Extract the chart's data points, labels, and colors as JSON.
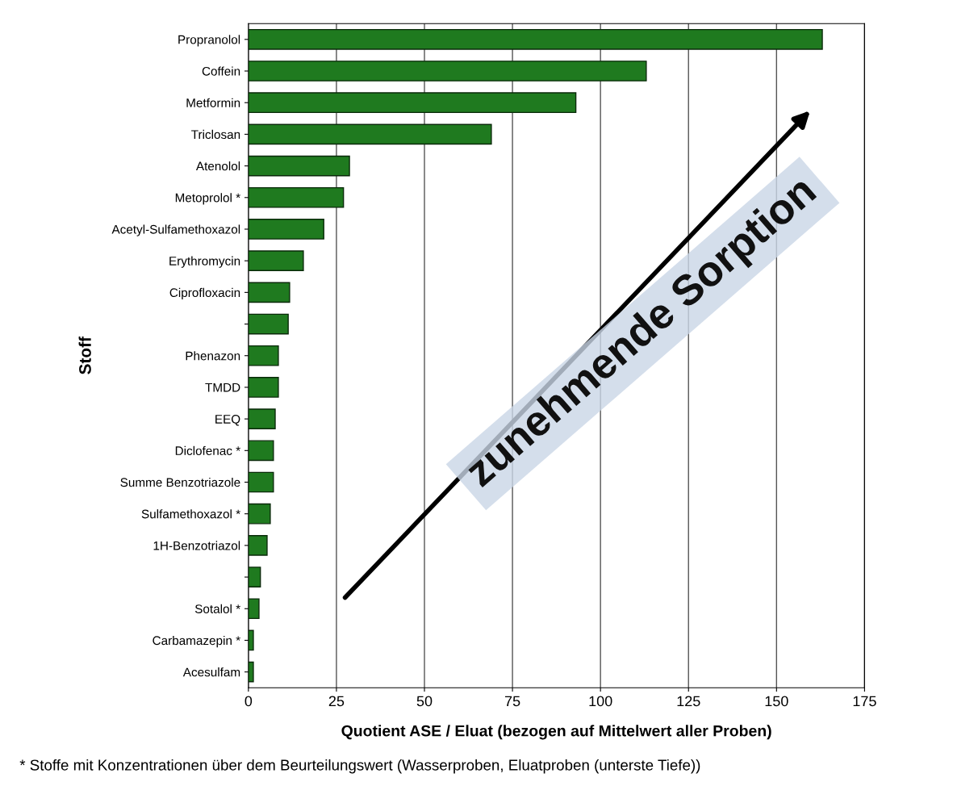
{
  "chart_data": {
    "type": "bar",
    "orientation": "horizontal",
    "categories": [
      "Propranolol",
      "Coffein",
      "Metformin",
      "Triclosan",
      "Atenolol",
      "Metoprolol *",
      "Acetyl-Sulfamethoxazol",
      "Erythromycin",
      "Ciprofloxacin",
      null,
      "Phenazon",
      "TMDD",
      "EEQ",
      "Diclofenac *",
      "Summe Benzotriazole",
      "Sulfamethoxazol *",
      "1H-Benzotriazol",
      null,
      "Sotalol *",
      "Carbamazepin *",
      "Acesulfam"
    ],
    "values": [
      163,
      113,
      93,
      69,
      28.7,
      27,
      21.4,
      15.6,
      11.7,
      11.3,
      8.5,
      8.5,
      7.6,
      7.1,
      7.1,
      6.2,
      5.3,
      3.4,
      3,
      1.4,
      1.4
    ],
    "color": "#1f7a1f",
    "xlim": [
      0,
      175
    ],
    "xticks": [
      0,
      25,
      50,
      75,
      100,
      125,
      150,
      175
    ],
    "grid": "x",
    "xlabel": "Quotient ASE / Eluat (bezogen auf Mittelwert aller Proben)",
    "ylabel": "Stoff",
    "annotations": [
      "zunehmende Sorption",
      "* Stoffe mit Konzentrationen über dem Beurteilungswert (Wasserproben, Eluatproben (unterste Tiefe))"
    ]
  }
}
